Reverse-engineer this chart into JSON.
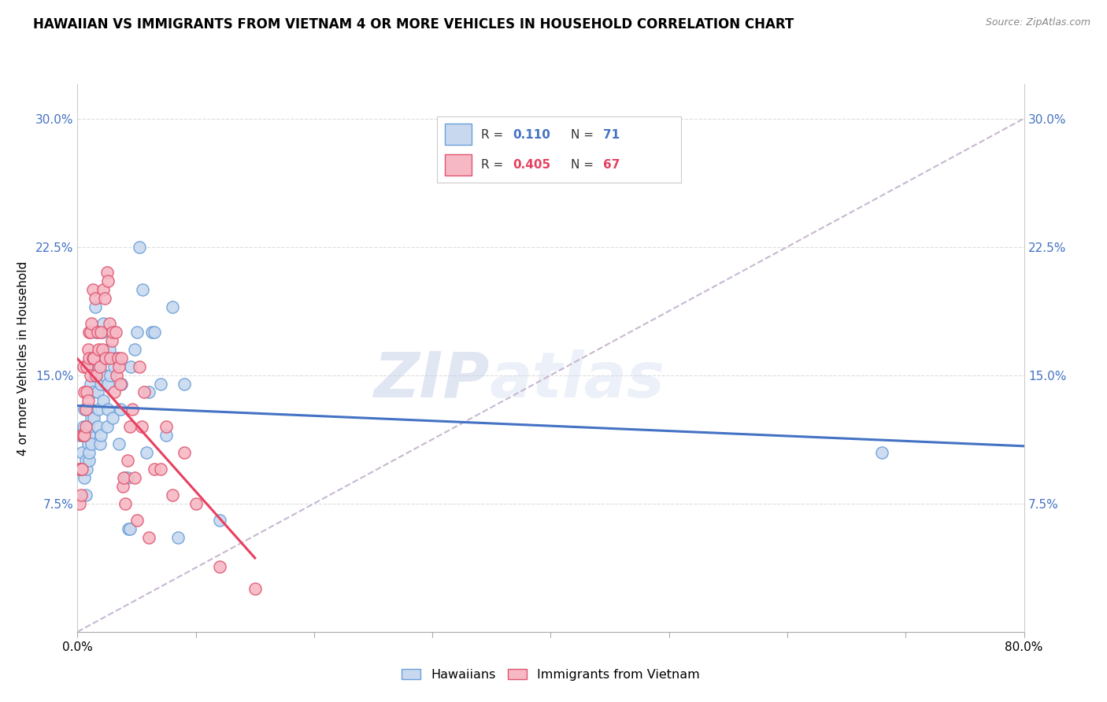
{
  "title": "HAWAIIAN VS IMMIGRANTS FROM VIETNAM 4 OR MORE VEHICLES IN HOUSEHOLD CORRELATION CHART",
  "source": "Source: ZipAtlas.com",
  "ylabel_label": "4 or more Vehicles in Household",
  "legend1_label": "Hawaiians",
  "legend2_label": "Immigrants from Vietnam",
  "r1": "0.110",
  "n1": "71",
  "r2": "0.405",
  "n2": "67",
  "color_hawaiian_fill": "#c8d9ef",
  "color_hawaiian_edge": "#6a9fd8",
  "color_vietnam_fill": "#f5b8c4",
  "color_vietnam_edge": "#e05570",
  "color_line_hawaiian": "#4472c4",
  "color_line_vietnam": "#e84060",
  "color_dashed": "#c8b8d0",
  "hawaiian_x": [
    0.2,
    0.3,
    0.4,
    0.5,
    0.6,
    0.6,
    0.7,
    0.7,
    0.8,
    0.8,
    0.9,
    0.9,
    1.0,
    1.0,
    1.0,
    1.0,
    1.1,
    1.1,
    1.2,
    1.2,
    1.3,
    1.3,
    1.4,
    1.4,
    1.5,
    1.5,
    1.6,
    1.7,
    1.7,
    1.8,
    1.8,
    1.9,
    2.0,
    2.0,
    2.1,
    2.2,
    2.2,
    2.3,
    2.4,
    2.5,
    2.6,
    2.6,
    2.7,
    2.8,
    3.0,
    3.1,
    3.2,
    3.5,
    3.6,
    3.7,
    4.0,
    4.0,
    4.2,
    4.3,
    4.4,
    4.5,
    4.8,
    5.0,
    5.2,
    5.5,
    5.8,
    6.0,
    6.3,
    6.5,
    7.0,
    7.5,
    8.0,
    8.5,
    9.0,
    12.0,
    68.0
  ],
  "hawaiian_y": [
    11.5,
    9.5,
    10.5,
    12.0,
    9.0,
    13.0,
    8.0,
    10.0,
    12.0,
    9.5,
    11.0,
    13.0,
    10.0,
    11.5,
    10.5,
    12.0,
    13.0,
    14.5,
    12.5,
    11.0,
    15.5,
    14.0,
    15.0,
    12.5,
    19.0,
    15.0,
    17.5,
    14.0,
    12.0,
    15.5,
    13.0,
    11.0,
    14.5,
    11.5,
    17.5,
    18.0,
    13.5,
    15.0,
    16.0,
    12.0,
    14.5,
    13.0,
    16.5,
    15.0,
    12.5,
    15.5,
    16.0,
    11.0,
    13.0,
    14.5,
    9.0,
    9.0,
    9.0,
    6.0,
    6.0,
    15.5,
    16.5,
    17.5,
    22.5,
    20.0,
    10.5,
    14.0,
    17.5,
    17.5,
    14.5,
    11.5,
    19.0,
    5.5,
    14.5,
    6.5,
    10.5
  ],
  "vietnam_x": [
    0.1,
    0.2,
    0.3,
    0.3,
    0.4,
    0.4,
    0.5,
    0.5,
    0.6,
    0.6,
    0.7,
    0.7,
    0.8,
    0.8,
    0.9,
    0.9,
    1.0,
    1.0,
    1.1,
    1.1,
    1.2,
    1.3,
    1.3,
    1.4,
    1.5,
    1.6,
    1.7,
    1.8,
    1.9,
    2.0,
    2.1,
    2.2,
    2.3,
    2.4,
    2.5,
    2.6,
    2.7,
    2.8,
    2.9,
    3.0,
    3.1,
    3.2,
    3.3,
    3.4,
    3.5,
    3.6,
    3.7,
    3.8,
    3.9,
    4.0,
    4.2,
    4.4,
    4.6,
    4.8,
    5.0,
    5.2,
    5.4,
    5.6,
    6.0,
    6.5,
    7.0,
    7.5,
    8.0,
    9.0,
    10.0,
    12.0,
    15.0
  ],
  "vietnam_y": [
    9.5,
    7.5,
    8.0,
    9.5,
    11.5,
    9.5,
    15.5,
    11.5,
    11.5,
    14.0,
    12.0,
    13.0,
    15.5,
    14.0,
    13.5,
    16.5,
    16.0,
    17.5,
    15.0,
    17.5,
    18.0,
    20.0,
    16.0,
    16.0,
    19.5,
    15.0,
    17.5,
    16.5,
    15.5,
    17.5,
    16.5,
    20.0,
    19.5,
    16.0,
    21.0,
    20.5,
    18.0,
    16.0,
    17.0,
    17.5,
    14.0,
    17.5,
    15.0,
    16.0,
    15.5,
    14.5,
    16.0,
    8.5,
    9.0,
    7.5,
    10.0,
    12.0,
    13.0,
    9.0,
    6.5,
    15.5,
    12.0,
    14.0,
    5.5,
    9.5,
    9.5,
    12.0,
    8.0,
    10.5,
    7.5,
    3.8,
    2.5
  ],
  "xlim_pct": [
    0.0,
    80.0
  ],
  "ylim_pct": [
    0.0,
    32.0
  ],
  "xtick_vals_pct": [
    0.0,
    10.0,
    20.0,
    30.0,
    40.0,
    50.0,
    60.0,
    70.0,
    80.0
  ],
  "ytick_vals_pct": [
    0.0,
    7.5,
    15.0,
    22.5,
    30.0
  ],
  "dashed_line_x": [
    0.0,
    80.0
  ],
  "dashed_line_y": [
    0.0,
    30.0
  ]
}
